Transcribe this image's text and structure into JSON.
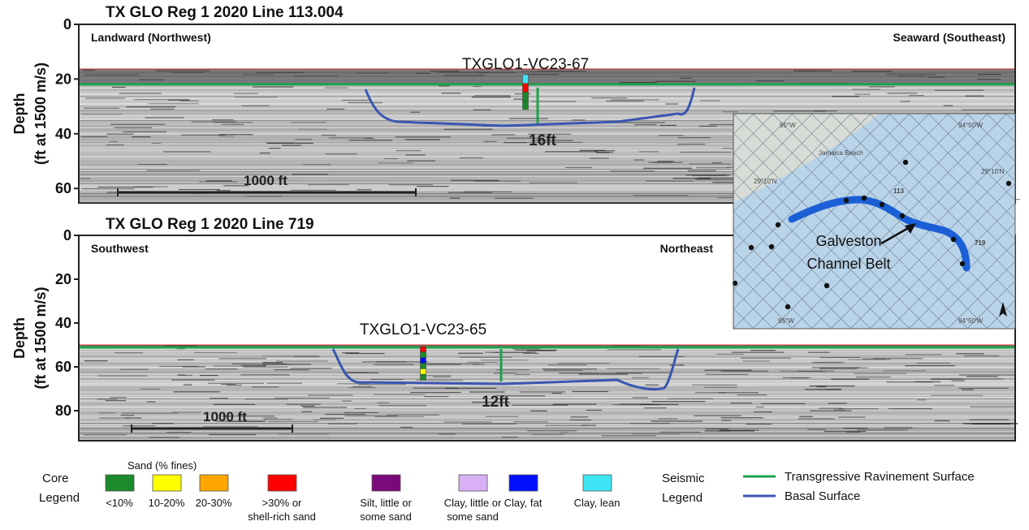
{
  "panels": [
    {
      "title": "TX GLO Reg 1 2020 Line 113.004",
      "y_label": [
        "Depth",
        "(ft at 1500 m/s)"
      ],
      "yticks": [
        "0",
        "20",
        "40",
        "60"
      ],
      "left_label": "Landward (Northwest)",
      "right_label": "Seaward (Southeast)",
      "core": "TXGLO1-VC23-67",
      "thickness": "16ft",
      "scale_bar": "1000 ft"
    },
    {
      "title": "TX GLO Reg 1 2020 Line 719",
      "y_label": [
        "Depth",
        "(ft at 1500 m/s)"
      ],
      "yticks": [
        "0",
        "20",
        "40",
        "60",
        "80"
      ],
      "left_label": "Southwest",
      "right_label": "Northeast",
      "core": "TXGLO1-VC23-65",
      "thickness": "12ft",
      "scale_bar": "1000 ft"
    }
  ],
  "map": {
    "top_labels": [
      "95°W",
      "94°50'W"
    ],
    "bottom_labels": [
      "95°W",
      "94°50'W"
    ],
    "lat_labels": [
      "29°10'N",
      "29°10'N"
    ],
    "place": "Jamaica Beach",
    "lines": [
      "113",
      "719"
    ],
    "channel": [
      "Galveston",
      "Channel Belt"
    ]
  },
  "core_legend": {
    "title": [
      "Core",
      "Legend"
    ],
    "sand_heading": "Sand (% fines)",
    "items": [
      {
        "label": [
          "<10%"
        ],
        "color": "#1a8a2a"
      },
      {
        "label": [
          "10-20%"
        ],
        "color": "#ffff00"
      },
      {
        "label": [
          "20-30%"
        ],
        "color": "#ffa500"
      },
      {
        "label": [
          ">30% or",
          "shell-rich sand"
        ],
        "color": "#ff0000"
      },
      {
        "label": [
          "Silt, little or",
          "some sand"
        ],
        "color": "#7a0a7a"
      },
      {
        "label": [
          "Clay, little or",
          "some sand"
        ],
        "color": "#d9b0f5"
      },
      {
        "label": [
          "Clay, fat"
        ],
        "color": "#0010ff"
      },
      {
        "label": [
          "Clay, lean"
        ],
        "color": "#3ee6f5"
      }
    ]
  },
  "seismic_legend": {
    "title": [
      "Seismic",
      "Legend"
    ],
    "items": [
      {
        "label": "Transgressive Ravinement Surface",
        "color": "#1aa34a"
      },
      {
        "label": "Basal Surface",
        "color": "#3a56b0"
      }
    ]
  }
}
